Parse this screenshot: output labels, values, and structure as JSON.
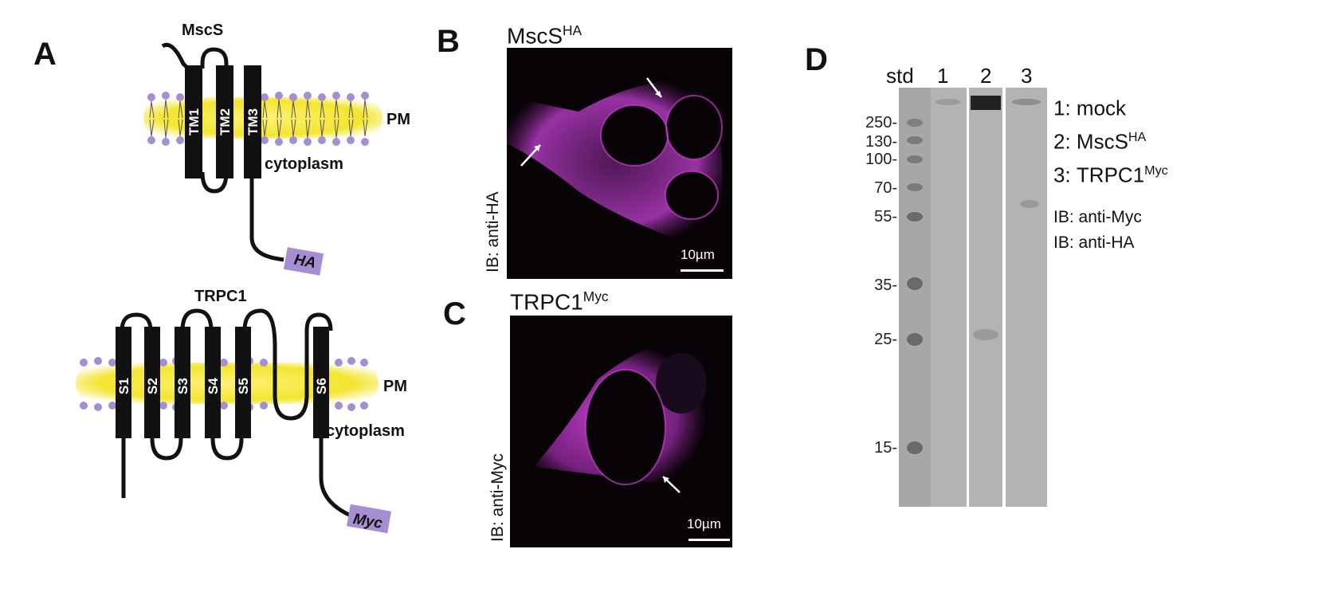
{
  "panels": {
    "A": {
      "letter": "A",
      "top": {
        "protein": "MscS",
        "segments": [
          "TM1",
          "TM2",
          "TM3"
        ],
        "membrane_label": "PM",
        "side_label": "cytoplasm",
        "tag": "HA"
      },
      "bottom": {
        "protein": "TRPC1",
        "segments": [
          "S1",
          "S2",
          "S3",
          "S4",
          "S5",
          "S6"
        ],
        "membrane_label": "PM",
        "side_label": "cytoplasm",
        "tag": "Myc"
      }
    },
    "B": {
      "letter": "B",
      "title_main": "MscS",
      "title_sup": "HA",
      "side_label": "IB: anti-HA",
      "scale": "10µm"
    },
    "C": {
      "letter": "C",
      "title_main": "TRPC1",
      "title_sup": "Myc",
      "side_label": "IB: anti-Myc",
      "scale": "10µm"
    },
    "D": {
      "letter": "D",
      "lane_headers": [
        "std",
        "1",
        "2",
        "3"
      ],
      "ladder": [
        "250-",
        "130-",
        "100-",
        "70-",
        "55-",
        "35-",
        "25-",
        "15-"
      ],
      "legend": [
        {
          "num": "1:",
          "main": "mock",
          "sup": ""
        },
        {
          "num": "2:",
          "main": "MscS",
          "sup": "HA"
        },
        {
          "num": "3:",
          "main": "TRPC1",
          "sup": "Myc"
        }
      ],
      "ib_labels": [
        "IB: anti-Myc",
        "IB: anti-HA"
      ]
    }
  },
  "colors": {
    "membrane": "#f2e21a",
    "lipid_head": "#a58fd0",
    "tag_box": "#a58fd0",
    "stain": "#c83ed0",
    "blot_bg": "#b3b3b3"
  }
}
